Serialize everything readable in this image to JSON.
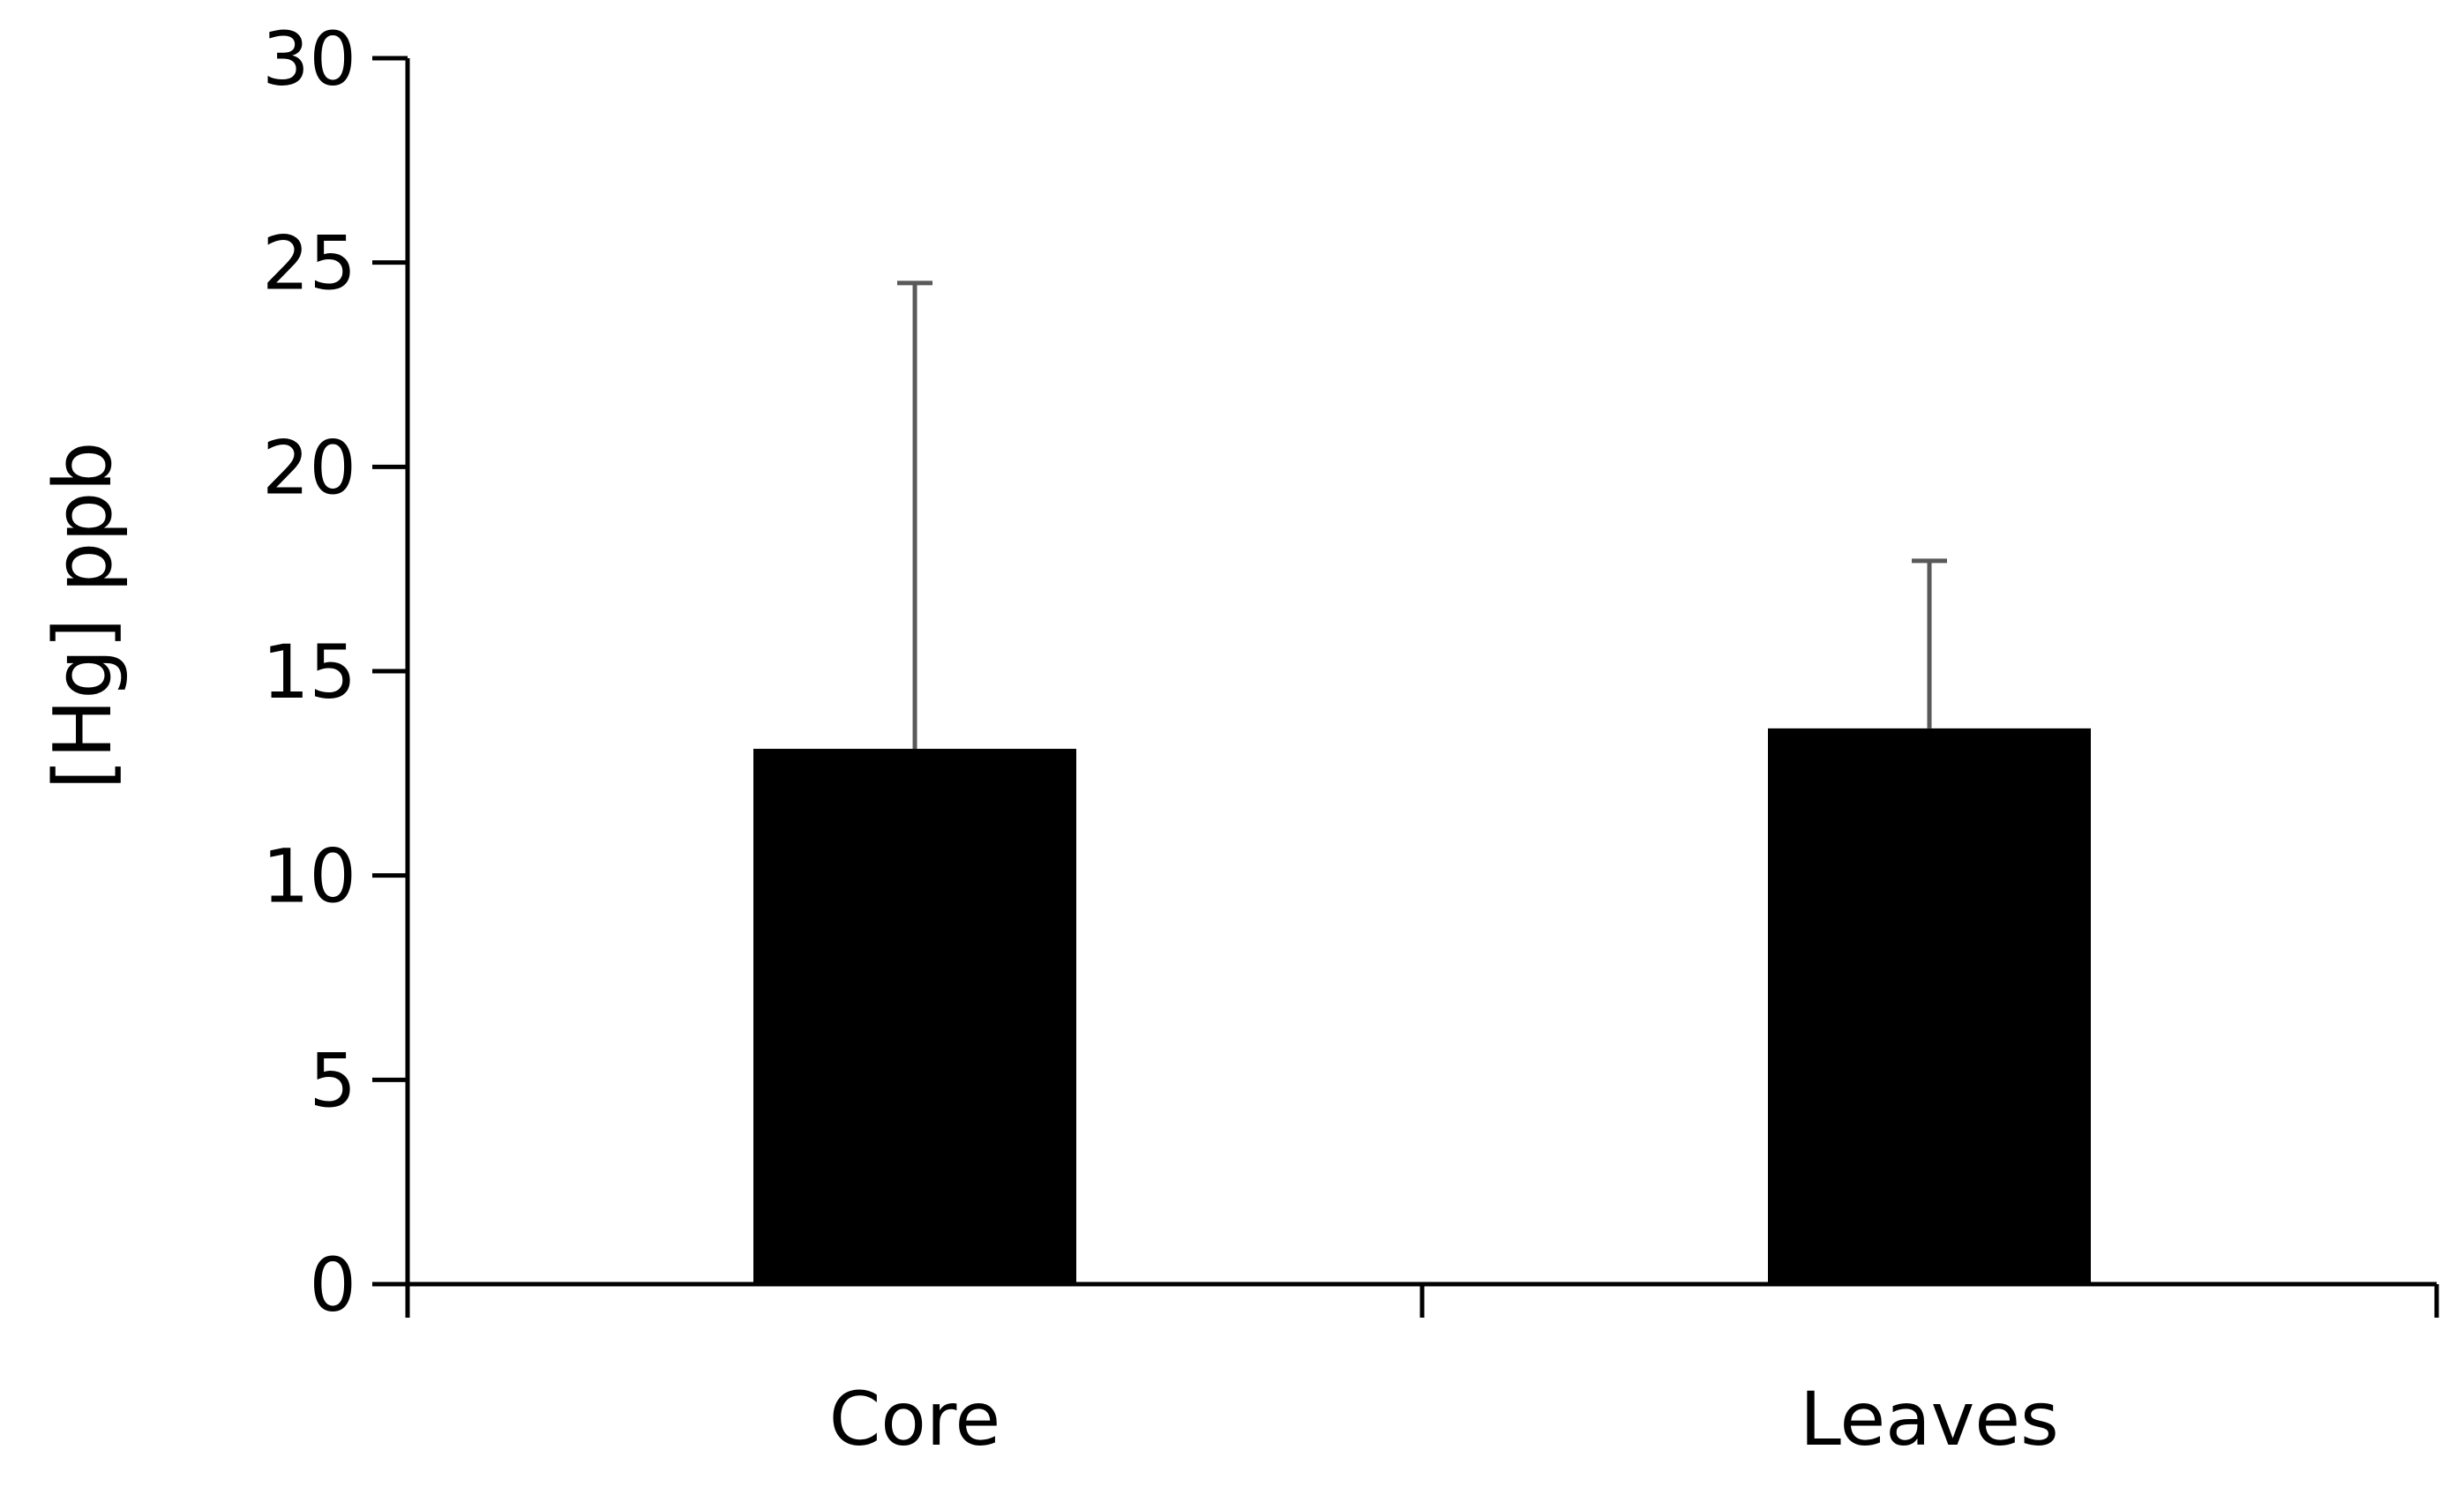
{
  "chart_data": {
    "type": "bar",
    "title": "",
    "xlabel": "",
    "ylabel": "[Hg] ppb",
    "categories": [
      "Core",
      "Leaves"
    ],
    "values": [
      13.1,
      13.6
    ],
    "error_upper": [
      11.4,
      4.1
    ],
    "ylim": [
      0,
      30
    ],
    "yticks": [
      "0",
      "5",
      "10",
      "15",
      "20",
      "25",
      "30"
    ],
    "grid": false,
    "legend": "none",
    "colors": {
      "bar": "#000000",
      "axis": "#000000",
      "error_bar": "#595959"
    }
  }
}
